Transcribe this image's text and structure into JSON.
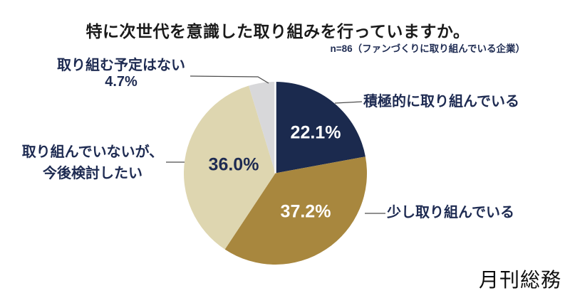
{
  "title": "特に次世代を意識した取り組みを行っていますか。",
  "subtitle": "n=86（ファンづくりに取り組んでいる企業）",
  "logo_text": "月刊総務",
  "colors": {
    "navy": "#1b2a4e",
    "gold": "#a8873e",
    "beige": "#ded6b0",
    "gray": "#d8d8da",
    "label_text": "#1e2b52",
    "leader_line": "#4d4d4d"
  },
  "chart_data": {
    "type": "pie",
    "title": "特に次世代を意識した取り組みを行っていますか。",
    "n_label": "n=86（ファンづくりに取り組んでいる企業）",
    "start_angle_deg": 0,
    "direction": "clockwise",
    "slices": [
      {
        "label": "積極的に取り組んでいる",
        "value": 22.1,
        "display": "22.1%",
        "color": "#1b2a4e",
        "pct_text_color": "#ffffff"
      },
      {
        "label": "少し取り組んでいる",
        "value": 37.2,
        "display": "37.2%",
        "color": "#a8873e",
        "pct_text_color": "#ffffff"
      },
      {
        "label": "取り組んでいないが、今後検討したい",
        "label_lines": [
          "取り組んでいないが、",
          "今後検討したい"
        ],
        "value": 36.0,
        "display": "36.0%",
        "color": "#ded6b0",
        "pct_text_color": "#1e2b52"
      },
      {
        "label": "取り組む予定はない",
        "value": 4.7,
        "display": "4.7%",
        "color": "#d8d8da",
        "pct_text_color": "#1e2b52"
      }
    ]
  }
}
